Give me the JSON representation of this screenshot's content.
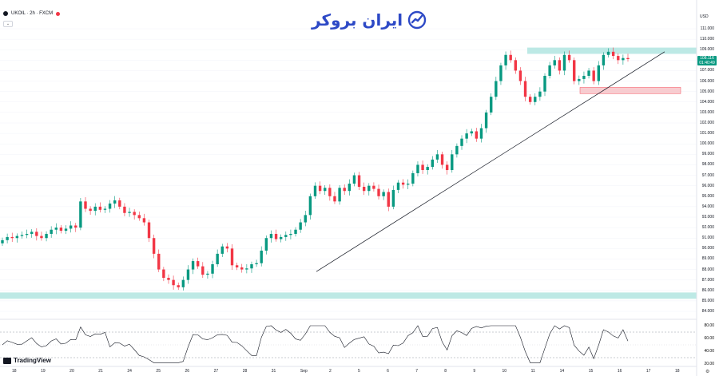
{
  "header": {
    "symbol": "UKOIL · 2h · FXCM",
    "collapse_label": "⌄"
  },
  "logo": {
    "text": "ایران بروکر",
    "icon": "chart-trend-icon",
    "color": "#2d49c6"
  },
  "currency": "USD",
  "current_price": {
    "value": "108.116",
    "countdown": "01:40:49"
  },
  "price_axis": {
    "ticks": [
      "111.000",
      "110.000",
      "109.000",
      "108.000",
      "107.000",
      "106.000",
      "105.000",
      "104.000",
      "103.000",
      "102.000",
      "101.000",
      "100.000",
      "99.000",
      "98.000",
      "97.000",
      "96.000",
      "95.000",
      "94.000",
      "93.000",
      "92.000",
      "91.000",
      "90.000",
      "89.000",
      "88.000",
      "87.000",
      "86.000",
      "85.000",
      "84.000"
    ],
    "top": 111,
    "bottom": 84
  },
  "rsi_axis": {
    "ticks": [
      "80.00",
      "60.00",
      "40.00",
      "20.00"
    ]
  },
  "time_axis": {
    "labels": [
      "18",
      "19",
      "20",
      "21",
      "24",
      "25",
      "26",
      "27",
      "28",
      "31",
      "Sep",
      "2",
      "5",
      "6",
      "7",
      "8",
      "9",
      "10",
      "11",
      "14",
      "15",
      "16",
      "17",
      "18"
    ]
  },
  "watermark": "TradingView",
  "colors": {
    "up": "#089981",
    "down": "#f23645",
    "zone_top": "#b2e5e0",
    "zone_red": "#f7c4c8",
    "zone_bottom": "#b2e5e0"
  },
  "chart_data": {
    "type": "candlestick",
    "ylim": [
      84,
      111
    ],
    "x_labels": [
      "18",
      "19",
      "20",
      "21",
      "24",
      "25",
      "26",
      "27",
      "28",
      "31",
      "Sep",
      "2",
      "5",
      "6",
      "7",
      "8",
      "9",
      "10",
      "11",
      "14",
      "15",
      "16",
      "17",
      "18"
    ],
    "close_approx": [
      90.8,
      91.1,
      91.0,
      91.2,
      91.3,
      91.4,
      91.6,
      91.2,
      91.0,
      91.4,
      91.8,
      92.0,
      91.7,
      91.9,
      92.2,
      92.0,
      94.5,
      93.8,
      93.6,
      94.0,
      93.7,
      93.8,
      94.3,
      94.6,
      94.0,
      93.4,
      93.5,
      93.2,
      92.9,
      92.5,
      91.0,
      89.5,
      88.0,
      87.2,
      87.0,
      86.5,
      86.3,
      87.0,
      88.0,
      88.8,
      88.3,
      87.5,
      87.6,
      88.5,
      89.5,
      90.2,
      90.0,
      88.4,
      88.2,
      88.0,
      88.1,
      88.5,
      88.6,
      89.8,
      91.0,
      91.4,
      90.9,
      91.1,
      91.3,
      91.4,
      91.8,
      92.5,
      93.2,
      95.0,
      96.0,
      95.5,
      95.8,
      95.0,
      94.5,
      95.8,
      95.5,
      96.2,
      97.0,
      95.9,
      95.5,
      96.0,
      95.7,
      95.0,
      95.4,
      94.0,
      95.6,
      96.3,
      96.1,
      96.2,
      97.2,
      98.0,
      97.5,
      97.8,
      98.5,
      99.0,
      98.0,
      97.5,
      99.0,
      99.8,
      100.5,
      101.0,
      101.2,
      100.5,
      101.5,
      103.0,
      104.5,
      106.0,
      107.5,
      108.5,
      108.0,
      107.0,
      106.0,
      104.5,
      104.0,
      104.5,
      105.0,
      106.5,
      107.5,
      108.0,
      107.0,
      108.5,
      108.0,
      106.0,
      106.2,
      106.5,
      107.0,
      106.0,
      107.5,
      108.5,
      108.8,
      108.4,
      108.0,
      108.2,
      108.1
    ],
    "zones": [
      {
        "kind": "resistance",
        "from": 108.6,
        "to": 109.2
      },
      {
        "kind": "support",
        "from": 104.8,
        "to": 105.4
      },
      {
        "kind": "support",
        "from": 85.2,
        "to": 85.8
      }
    ],
    "trendline": {
      "from_price": 87.8,
      "to_price": 108.8
    },
    "rsi": {
      "upper": 70,
      "lower": 30,
      "ylim": [
        20,
        85
      ]
    }
  }
}
